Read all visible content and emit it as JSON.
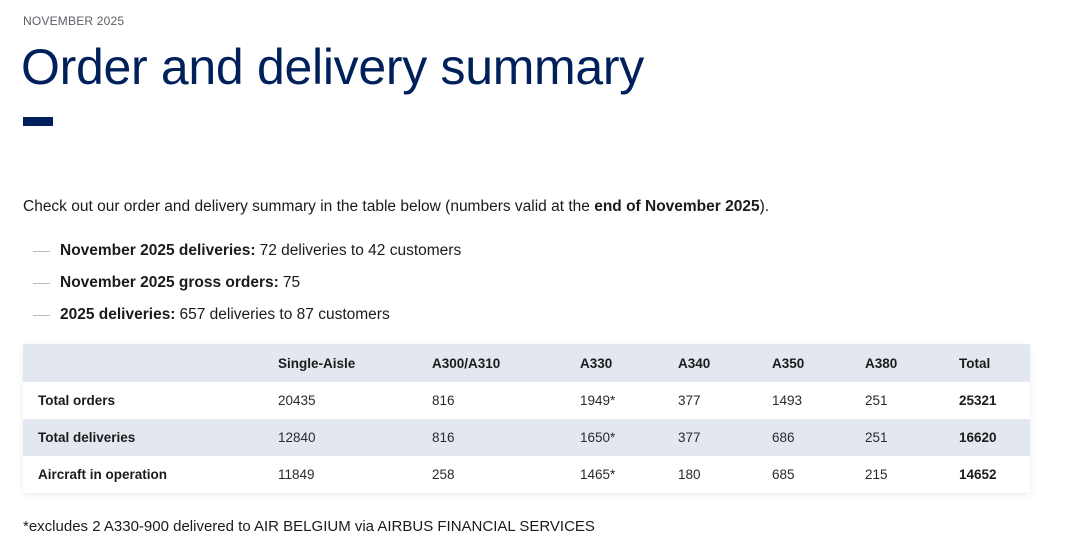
{
  "eyebrow": "NOVEMBER 2025",
  "title": "Order and delivery summary",
  "intro": {
    "text": "Check out our order and delivery summary in the table below (numbers valid at the ",
    "bold": "end of November 2025",
    "suffix": ")."
  },
  "bullets": [
    {
      "label": "November 2025 deliveries:",
      "value": "72 deliveries to 42 customers"
    },
    {
      "label": "November 2025 gross orders:",
      "value": "75"
    },
    {
      "label": "2025 deliveries:",
      "value": "657 deliveries to 87 customers"
    }
  ],
  "table": {
    "headers": [
      "",
      "Single-Aisle",
      "A300/A310",
      "A330",
      "A340",
      "A350",
      "A380",
      "Total"
    ],
    "rows": [
      [
        "Total orders",
        "20435",
        "816",
        "1949*",
        "377",
        "1493",
        "251",
        "25321"
      ],
      [
        "Total deliveries",
        "12840",
        "816",
        "1650*",
        "377",
        "686",
        "251",
        "16620"
      ],
      [
        "Aircraft in operation",
        "11849",
        "258",
        "1465*",
        "180",
        "685",
        "215",
        "14652"
      ]
    ]
  },
  "footnote": "*excludes 2 A330-900 delivered to AIR BELGIUM via AIRBUS FINANCIAL SERVICES",
  "colors": {
    "brand_navy": "#00205b",
    "table_header_bg": "#e3e8f0"
  }
}
